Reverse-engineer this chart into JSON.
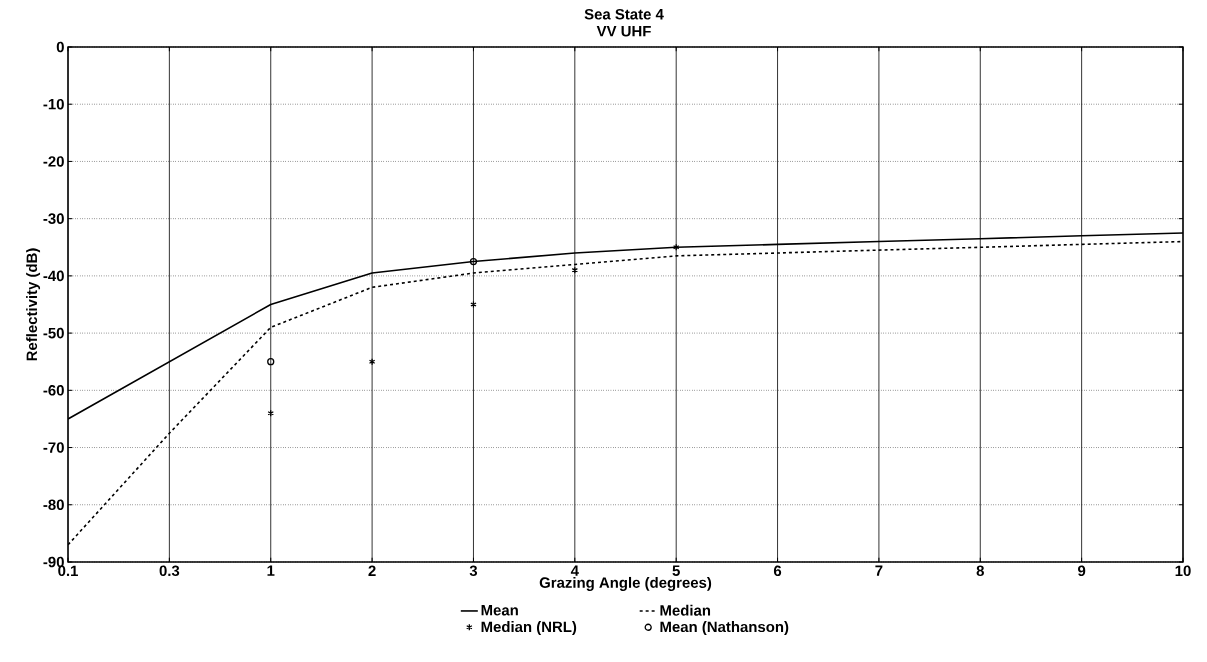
{
  "chart_data": {
    "type": "line",
    "title": "Sea State 4",
    "subtitle": "VV UHF",
    "xlabel": "Grazing Angle (degrees)",
    "ylabel": "Reflectivity (dB)",
    "categories": [
      "0.1",
      "0.3",
      "1",
      "2",
      "3",
      "4",
      "5",
      "6",
      "7",
      "8",
      "9",
      "10"
    ],
    "ylim": [
      -90,
      0
    ],
    "yticks": [
      -90,
      -80,
      -70,
      -60,
      -50,
      -40,
      -30,
      -20,
      -10,
      0
    ],
    "grid": true,
    "legend": "bottom",
    "series": [
      {
        "name": "Mean",
        "color": "#000000",
        "line_style": "solid",
        "marker": "none",
        "values": [
          -65,
          -55,
          -45,
          -39.5,
          -37.5,
          -36,
          -35,
          -34.5,
          -34,
          -33.5,
          -33,
          -32.5
        ]
      },
      {
        "name": "Median",
        "color": "#000000",
        "line_style": "dashed",
        "marker": "none",
        "values": [
          -87,
          -67.5,
          -49,
          -42,
          -39.5,
          -38,
          -36.5,
          -36,
          -35.5,
          -35,
          -34.5,
          -34
        ]
      },
      {
        "name": "Median (NRL)",
        "type": "scatter",
        "color": "#000000",
        "marker": "cross",
        "values": [
          null,
          null,
          -64,
          -55,
          -45,
          -39,
          -35,
          null,
          null,
          null,
          null,
          null
        ]
      },
      {
        "name": "Mean (Nathanson)",
        "type": "scatter",
        "color": "#000000",
        "marker": "circle",
        "values": [
          null,
          null,
          -55,
          null,
          -37.5,
          null,
          null,
          null,
          null,
          null,
          null,
          null
        ]
      }
    ]
  }
}
